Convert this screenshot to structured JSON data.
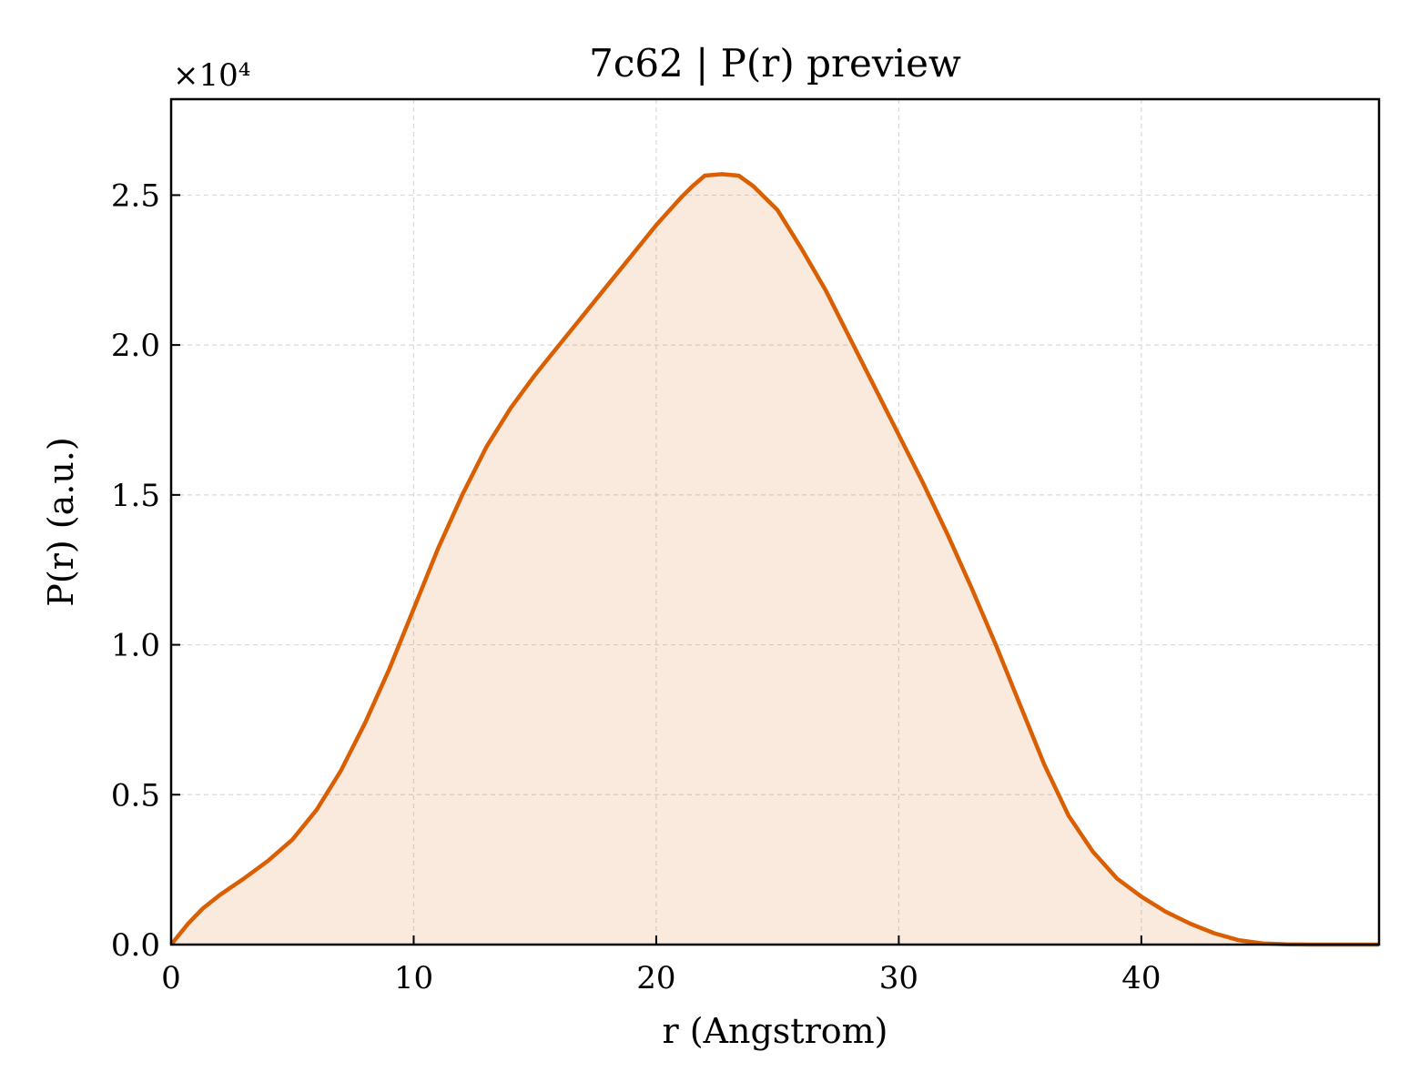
{
  "chart_data": {
    "type": "area",
    "title": "7c62 | P(r) preview",
    "xlabel": "r (Angstrom)",
    "ylabel": "P(r) (a.u.)",
    "offset_label": "×10⁴",
    "xlim": [
      0,
      49.8
    ],
    "ylim": [
      0,
      28200
    ],
    "x_ticks": [
      0,
      10,
      20,
      30,
      40
    ],
    "x_tick_labels": [
      "0",
      "10",
      "20",
      "30",
      "40"
    ],
    "y_ticks": [
      0,
      5000,
      10000,
      15000,
      20000,
      25000
    ],
    "y_tick_labels": [
      "0.0",
      "0.5",
      "1.0",
      "1.5",
      "2.0",
      "2.5"
    ],
    "grid": true,
    "series": [
      {
        "color": "#d95f02",
        "fill_color": "#d95f02",
        "fill_opacity": 0.13,
        "x": [
          0,
          0.7,
          1.3,
          2,
          3,
          4,
          5,
          6,
          7,
          8,
          9,
          10,
          11,
          12,
          13,
          14,
          15,
          16,
          17,
          18,
          19,
          20,
          21,
          21.5,
          22,
          22.7,
          23.4,
          24,
          25,
          26,
          27,
          28,
          29,
          30,
          31,
          32,
          33,
          34,
          35,
          36,
          37,
          38,
          39,
          40,
          41,
          42,
          43,
          44,
          45,
          46,
          47,
          48,
          49,
          49.8
        ],
        "y": [
          0,
          700,
          1200,
          1650,
          2200,
          2800,
          3500,
          4500,
          5800,
          7400,
          9200,
          11200,
          13200,
          15000,
          16600,
          17900,
          19000,
          20000,
          21000,
          22000,
          23000,
          24000,
          24900,
          25300,
          25650,
          25700,
          25650,
          25300,
          24500,
          23200,
          21800,
          20200,
          18600,
          17000,
          15400,
          13700,
          11900,
          10000,
          8000,
          6000,
          4300,
          3100,
          2200,
          1600,
          1100,
          700,
          380,
          150,
          40,
          5,
          0,
          0,
          0,
          0
        ]
      }
    ]
  }
}
